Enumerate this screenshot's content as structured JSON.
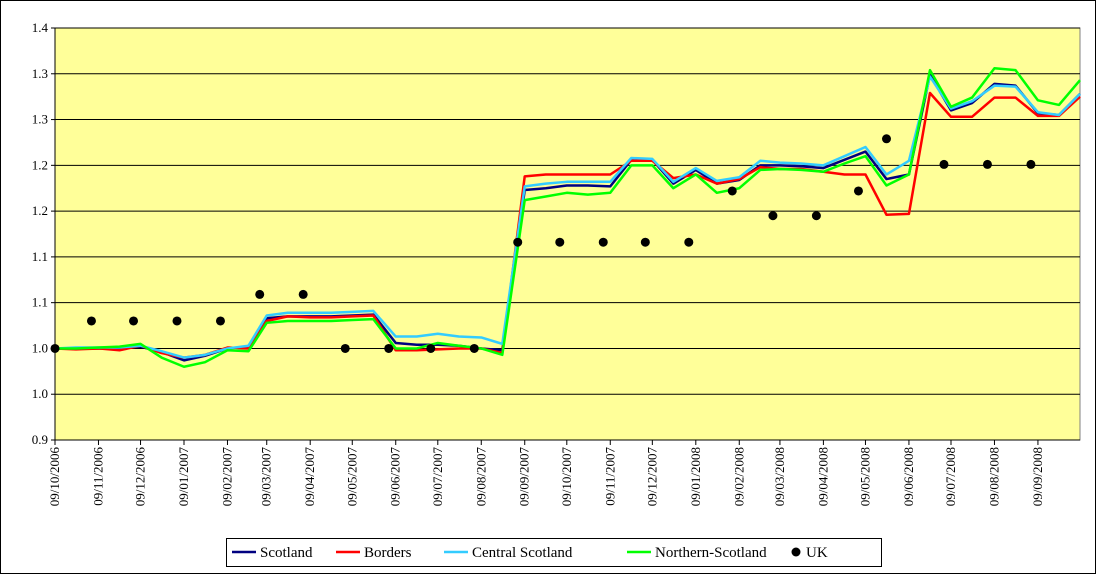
{
  "chart_data": {
    "type": "line",
    "x": [
      "09/10/2006",
      "24/10/2006",
      "09/11/2006",
      "24/11/2006",
      "09/12/2006",
      "24/12/2006",
      "09/01/2007",
      "24/01/2007",
      "09/02/2007",
      "24/02/2007",
      "09/03/2007",
      "24/03/2007",
      "09/04/2007",
      "24/04/2007",
      "09/05/2007",
      "24/05/2007",
      "09/06/2007",
      "24/06/2007",
      "09/07/2007",
      "24/07/2007",
      "09/08/2007",
      "24/08/2007",
      "09/09/2007",
      "24/09/2007",
      "09/10/2007",
      "24/10/2007",
      "09/11/2007",
      "24/11/2007",
      "09/12/2007",
      "24/12/2007",
      "09/01/2008",
      "24/01/2008",
      "09/02/2008",
      "24/02/2008",
      "09/03/2008",
      "24/03/2008",
      "09/04/2008",
      "24/04/2008",
      "09/05/2008",
      "24/05/2008",
      "09/06/2008",
      "24/06/2008",
      "09/07/2008",
      "24/07/2008",
      "09/08/2008",
      "24/08/2008",
      "09/09/2008",
      "24/09/2008",
      "09/10/2008"
    ],
    "series": [
      {
        "name": "Scotland",
        "color": "#000080",
        "values": [
          1.0,
          1.0,
          1.0,
          1.0,
          1.002,
          0.996,
          0.987,
          0.992,
          1.0,
          1.002,
          1.033,
          1.035,
          1.035,
          1.035,
          1.036,
          1.037,
          1.006,
          1.004,
          1.004,
          1.003,
          1.0,
          0.998,
          1.173,
          1.175,
          1.178,
          1.178,
          1.177,
          1.206,
          1.206,
          1.18,
          1.195,
          1.18,
          1.184,
          1.2,
          1.2,
          1.199,
          1.197,
          1.206,
          1.215,
          1.185,
          1.19,
          1.299,
          1.26,
          1.268,
          1.289,
          1.287,
          1.257,
          1.255,
          1.278
        ]
      },
      {
        "name": "Borders",
        "color": "#ff0000",
        "values": [
          1.0,
          0.999,
          1.0,
          0.998,
          1.003,
          0.995,
          0.99,
          0.993,
          1.001,
          1.0,
          1.03,
          1.035,
          1.034,
          1.034,
          1.035,
          1.036,
          0.998,
          0.998,
          0.999,
          1.0,
          1.0,
          0.995,
          1.188,
          1.19,
          1.19,
          1.19,
          1.19,
          1.205,
          1.205,
          1.186,
          1.19,
          1.18,
          1.185,
          1.198,
          1.196,
          1.196,
          1.193,
          1.19,
          1.19,
          1.146,
          1.147,
          1.279,
          1.253,
          1.253,
          1.274,
          1.274,
          1.254,
          1.254,
          1.275
        ]
      },
      {
        "name": "Central Scotland",
        "color": "#33ccff",
        "values": [
          1.0,
          1.001,
          1.001,
          1.001,
          1.003,
          0.997,
          0.99,
          0.993,
          1.0,
          1.003,
          1.036,
          1.039,
          1.039,
          1.039,
          1.04,
          1.041,
          1.013,
          1.013,
          1.016,
          1.013,
          1.012,
          1.005,
          1.177,
          1.18,
          1.182,
          1.182,
          1.182,
          1.208,
          1.207,
          1.182,
          1.197,
          1.183,
          1.187,
          1.205,
          1.203,
          1.202,
          1.2,
          1.21,
          1.22,
          1.19,
          1.205,
          1.297,
          1.262,
          1.27,
          1.287,
          1.286,
          1.258,
          1.255,
          1.278
        ]
      },
      {
        "name": "Northern-Scotland",
        "color": "#00ff00",
        "values": [
          1.0,
          1.0,
          1.001,
          1.002,
          1.005,
          0.99,
          0.98,
          0.985,
          0.998,
          0.997,
          1.028,
          1.03,
          1.03,
          1.03,
          1.031,
          1.032,
          1.0,
          1.0,
          1.006,
          1.003,
          1.0,
          0.993,
          1.162,
          1.166,
          1.17,
          1.168,
          1.17,
          1.2,
          1.2,
          1.175,
          1.19,
          1.17,
          1.175,
          1.195,
          1.196,
          1.195,
          1.193,
          1.202,
          1.21,
          1.178,
          1.19,
          1.304,
          1.264,
          1.274,
          1.306,
          1.304,
          1.271,
          1.266,
          1.293
        ]
      },
      {
        "name": "UK",
        "type": "scatter",
        "color": "#000000",
        "x": [
          "09/10/2006",
          "04/11/2006",
          "04/12/2006",
          "04/01/2007",
          "04/02/2007",
          "04/03/2007",
          "04/04/2007",
          "04/05/2007",
          "04/06/2007",
          "04/07/2007",
          "04/08/2007",
          "04/09/2007",
          "04/10/2007",
          "04/11/2007",
          "04/12/2007",
          "04/01/2008",
          "04/02/2008",
          "04/03/2008",
          "04/04/2008",
          "04/05/2008",
          "24/05/2008",
          "04/07/2008",
          "04/08/2008",
          "04/09/2008"
        ],
        "values": [
          1.0,
          1.03,
          1.03,
          1.03,
          1.03,
          1.059,
          1.059,
          1.0,
          1.0,
          1.0,
          1.0,
          1.116,
          1.116,
          1.116,
          1.116,
          1.116,
          1.172,
          1.145,
          1.145,
          1.172,
          1.229,
          1.201,
          1.201,
          1.201
        ]
      }
    ],
    "xlim": [
      "09/10/2006",
      "09/10/2008"
    ],
    "xticks": [
      "09/10/2006",
      "09/11/2006",
      "09/12/2006",
      "09/01/2007",
      "09/02/2007",
      "09/03/2007",
      "09/04/2007",
      "09/05/2007",
      "09/06/2007",
      "09/07/2007",
      "09/08/2007",
      "09/09/2007",
      "09/10/2007",
      "09/11/2007",
      "09/12/2007",
      "09/01/2008",
      "09/02/2008",
      "09/03/2008",
      "09/04/2008",
      "09/05/2008",
      "09/06/2008",
      "09/07/2008",
      "09/08/2008",
      "09/09/2008"
    ],
    "ylim": [
      0.9,
      1.35
    ],
    "yticks": [
      0.9,
      {
        "value": 0.95,
        "label": "1.0"
      },
      {
        "value": 1.0,
        "label": "1.0"
      },
      {
        "value": 1.05,
        "label": "1.1"
      },
      1.1,
      {
        "value": 1.15,
        "label": "1.2"
      },
      1.2,
      {
        "value": 1.25,
        "label": "1.3"
      },
      1.3,
      {
        "value": 1.35,
        "label": "1.4"
      }
    ],
    "grid": true,
    "background": "#ffff99",
    "legend": "bottom"
  }
}
